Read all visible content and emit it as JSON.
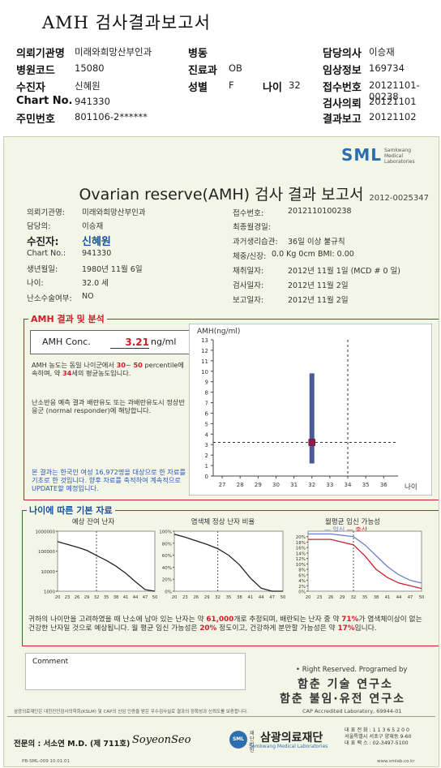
{
  "header": {
    "title": "AMH 검사결과보고서",
    "rows": [
      {
        "l1": "의뢰기관명",
        "v1": "미래와희망산부인과",
        "l2": "병동",
        "v2": "",
        "l3": "담당의사",
        "v3": "이승재"
      },
      {
        "l1": "병원코드",
        "v1": "15080",
        "l2": "진료과",
        "v2": "OB",
        "l3": "임상정보",
        "v3": "169734"
      },
      {
        "l1": "수진자",
        "v1": "신혜원",
        "l2": "성별",
        "v2": "F",
        "l4": "나이",
        "v4": "32",
        "l3": "접수번호",
        "v3": "20121101-00238"
      },
      {
        "l1": "Chart No.",
        "v1": "941330",
        "l2": "",
        "v2": "",
        "l3": "검사의뢰",
        "v3": "20121101"
      },
      {
        "l1": "주민번호",
        "v1": "801106-2******",
        "l2": "",
        "v2": "",
        "l3": "결과보고",
        "v3": "20121102"
      }
    ]
  },
  "report": {
    "logo": "SML",
    "logo_sub": "Samkwang Medical Laboratories",
    "title": "Ovarian reserve(AMH) 검사 결과 보고서",
    "number": "2012-0025347",
    "left": [
      {
        "label": "의뢰기관명:",
        "value": "미래와희망산부인과"
      },
      {
        "label": "담당의:",
        "value": "이승재"
      },
      {
        "label": "수진자:",
        "value": "신혜원"
      },
      {
        "label": "Chart No.:",
        "value": "941330"
      },
      {
        "label": "생년월일:",
        "value": "1980년 11월 6일"
      },
      {
        "label": "나이:",
        "value": "32.0 세"
      },
      {
        "label": "난소수술여부:",
        "value": "NO"
      }
    ],
    "right": [
      {
        "label": "접수번호:",
        "value": "2012110100238"
      },
      {
        "label": "최종월경일:",
        "value": ""
      },
      {
        "label": "과거생리습관:",
        "value": "36일 이상 불규칙"
      },
      {
        "label": "체중/신장:",
        "value": "0.0 Kg      0cm   BMI:    0.00"
      },
      {
        "label": "채취일자:",
        "value": "2012년 11월 1일   (MCD # 0 일)"
      },
      {
        "label": "검사일자:",
        "value": "2012년 11월 2일"
      },
      {
        "label": "보고일자:",
        "value": "2012년 11월 2일"
      }
    ]
  },
  "amh_section": {
    "title": "AMH 결과 및 분석",
    "conc_label": "AMH Conc.",
    "conc_value": "3.21",
    "conc_unit": "ng/ml",
    "note1_a": "AMH 농도는 동일 나이군에서",
    "note1_range_lo": "30",
    "note1_tilde": "~",
    "note1_range_hi": "50",
    "note1_b": "percentile에 속하며, 약",
    "note1_age": "34",
    "note1_c": "세의 평균농도입니다.",
    "note2": "난소반응 예측 결과 배란유도 또는 과배란유도시 정상반응군 (normal responder)에 해당합니다.",
    "note3": "본 결과는 한국인 여성 16,972명을 대상으로 한 자료를 기초로 한 것입니다. 향후 자료를 축적하여 계속적으로 UPDATE할 예정입니다."
  },
  "age_section": {
    "title": "나이에 따른 기본 자료",
    "chart1_title": "예상 잔여 난자",
    "chart2_title": "염색체 정상 난자 비율",
    "chart3_title": "월평균 임신 가능성",
    "legend_natural": "임신",
    "legend_birth": "출산",
    "summary_a": "귀하의 나이만을 고려하였을 때 난소에 남아 있는 난자는 약",
    "summary_eggs": "61,000",
    "summary_b": "개로 추정되며, 배란되는 난자 중 약",
    "summary_pct": "71%",
    "summary_c": "가 염색체이상이 없는 건강한 난자일 것으로 예상됩니다. 월 평균 임신 가능성은",
    "summary_preg": "20%",
    "summary_d": "정도이고, 건강하게 분만할 가능성은 약",
    "summary_birth": "17%",
    "summary_e": "입니다."
  },
  "footer": {
    "comment_label": "Comment",
    "rights": "• Right Reserved. Programed by",
    "inst1": "함춘 기술 연구소",
    "inst2": "함춘 불임·유전 연구소",
    "cert": "삼광의료재단은 대한진단검사의학회(KSLM) 및 CAP의 신임 인증을 받은 우수검사실로 결과의 정확성과 신뢰도를 보증합니다.",
    "cap": "CAP  Accredited  Laboratory,  69944-01",
    "doctor": "전문의 : 서소연 M.D. (제 711호)",
    "signature": "SoyeonSeo",
    "foundation": "삼광의료재단",
    "foundation_en": "Samkwang Medical Laboratories",
    "reg": "재단법인",
    "phone1": "대 표 전 화 : 1 1 3 6 5 2 0 0",
    "phone2": "서울특별시 서초구 양재동 9-60",
    "phone3": "대 표 팩 스 : 02-3497-5100",
    "bottom_code": "PB-SML-009 10.01.01",
    "website": "www.smlab.co.kr"
  },
  "chart_data": [
    {
      "type": "scatter",
      "title": "",
      "ylabel": "AMH(ng/ml)",
      "xlabel": "나이",
      "x_ticks": [
        27,
        28,
        29,
        30,
        31,
        32,
        33,
        34,
        35,
        36
      ],
      "y_ticks": [
        0,
        1,
        2,
        3,
        4,
        5,
        6,
        7,
        8,
        9,
        10,
        11,
        12,
        13
      ],
      "xlim": [
        26.5,
        36.8
      ],
      "ylim": [
        0,
        13
      ],
      "points": [
        {
          "x": 32,
          "y": 3.21
        }
      ],
      "range_bar": {
        "x": 32,
        "low": 1.2,
        "high": 9.8
      },
      "reference_age": 34
    },
    {
      "type": "line",
      "title": "예상 잔여 난자",
      "log_scale": true,
      "y_ticks": [
        1000,
        10000,
        100000,
        1000000
      ],
      "x_ticks": [
        20,
        23,
        26,
        29,
        32,
        35,
        38,
        41,
        44,
        47,
        50
      ],
      "x": [
        20,
        23,
        26,
        29,
        32,
        35,
        38,
        41,
        44,
        47,
        50
      ],
      "y": [
        300000,
        220000,
        160000,
        110000,
        61000,
        35000,
        18000,
        8000,
        3000,
        1200,
        500
      ],
      "marker_x": 32
    },
    {
      "type": "line",
      "title": "염색체 정상 난자 비율",
      "y_ticks": [
        "0%",
        "20%",
        "40%",
        "60%",
        "80%",
        "100%"
      ],
      "x_ticks": [
        20,
        23,
        26,
        29,
        32,
        35,
        38,
        41,
        44,
        47,
        50
      ],
      "x": [
        20,
        23,
        26,
        29,
        32,
        35,
        38,
        41,
        44,
        47,
        50
      ],
      "y": [
        95,
        90,
        84,
        78,
        71,
        60,
        44,
        22,
        5,
        0,
        0
      ],
      "marker_x": 32
    },
    {
      "type": "line",
      "title": "월평균 임신 가능성",
      "y_ticks": [
        "0%",
        "2%",
        "4%",
        "6%",
        "8%",
        "10%",
        "12%",
        "14%",
        "16%",
        "18%",
        "20%"
      ],
      "x_ticks": [
        20,
        23,
        26,
        29,
        32,
        35,
        38,
        41,
        44,
        47,
        50
      ],
      "series": [
        {
          "name": "임신",
          "x": [
            20,
            23,
            26,
            29,
            32,
            35,
            38,
            41,
            44,
            47,
            50
          ],
          "y": [
            21,
            21,
            21,
            20.5,
            20,
            17,
            13,
            9,
            6,
            4,
            3
          ]
        },
        {
          "name": "출산",
          "x": [
            20,
            23,
            26,
            29,
            32,
            35,
            38,
            41,
            44,
            47,
            50
          ],
          "y": [
            19,
            19,
            19,
            18,
            17,
            13,
            8,
            5,
            3,
            2,
            1
          ]
        }
      ],
      "marker_x": 32
    }
  ]
}
